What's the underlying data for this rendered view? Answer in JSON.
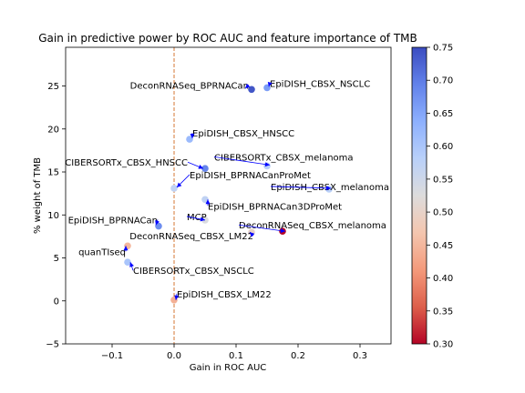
{
  "chart_data": {
    "type": "scatter",
    "title": "Gain in predictive power by ROC AUC and feature importance of TMB",
    "xlabel": "Gain in ROC AUC",
    "ylabel": "% weight of TMB",
    "xlim": [
      -0.175,
      0.35
    ],
    "ylim": [
      -5,
      29.5
    ],
    "xticks": [
      -0.1,
      0.0,
      0.1,
      0.2,
      0.3
    ],
    "xtick_labels": [
      "−0.1",
      "0.0",
      "0.1",
      "0.2",
      "0.3"
    ],
    "yticks": [
      -5,
      0,
      5,
      10,
      15,
      20,
      25
    ],
    "ytick_labels": [
      "−5",
      "0",
      "5",
      "10",
      "15",
      "20",
      "25"
    ],
    "grid": false,
    "reference_line": {
      "x": 0.0,
      "color": "#d2691e",
      "style": "dashed"
    },
    "colorbar": {
      "label": "",
      "range": [
        0.3,
        0.75
      ],
      "ticks": [
        0.3,
        0.35,
        0.4,
        0.45,
        0.5,
        0.55,
        0.6,
        0.65,
        0.7,
        0.75
      ],
      "tick_labels": [
        "0.30",
        "0.35",
        "0.40",
        "0.45",
        "0.50",
        "0.55",
        "0.60",
        "0.65",
        "0.70",
        "0.75"
      ],
      "colormap": "coolwarm_r"
    },
    "arrow_color": "#0000ff",
    "points": [
      {
        "label": "DeconRNASeq_BPRNACan",
        "x": 0.125,
        "y": 24.6,
        "c": 0.74
      },
      {
        "label": "EpiDISH_CBSX_NSCLC",
        "x": 0.15,
        "y": 24.8,
        "c": 0.66
      },
      {
        "label": "EpiDISH_CBSX_HNSCC",
        "x": 0.025,
        "y": 18.8,
        "c": 0.62
      },
      {
        "label": "CIBERSORTx_CBSX_HNSCC",
        "x": 0.05,
        "y": 15.4,
        "c": 0.69
      },
      {
        "label": "CIBERSORTx_CBSX_melanoma",
        "x": 0.15,
        "y": 15.7,
        "c": 0.58
      },
      {
        "label": "EpiDISH_BPRNACanProMet",
        "x": 0.0,
        "y": 13.1,
        "c": 0.57
      },
      {
        "label": "EpiDISH_CBSX_melanoma",
        "x": 0.25,
        "y": 13.0,
        "c": 0.58
      },
      {
        "label": "EpiDISH_BPRNACan3DProMet",
        "x": 0.05,
        "y": 11.8,
        "c": 0.57
      },
      {
        "label": "MCP",
        "x": 0.05,
        "y": 9.4,
        "c": 0.53
      },
      {
        "label": "EpiDISH_BPRNACan",
        "x": -0.025,
        "y": 8.7,
        "c": 0.68
      },
      {
        "label": "DeconRNASeq_CBSX_melanoma",
        "x": 0.175,
        "y": 8.1,
        "c": 0.3
      },
      {
        "label": "DeconRNASeq_CBSX_LM22",
        "x": 0.125,
        "y": 8.0,
        "c": 0.5
      },
      {
        "label": "quanTIseq",
        "x": -0.075,
        "y": 6.4,
        "c": 0.45
      },
      {
        "label": "CIBERSORTx_CBSX_NSCLC",
        "x": -0.075,
        "y": 4.5,
        "c": 0.6
      },
      {
        "label": "EpiDISH_CBSX_LM22",
        "x": 0.0,
        "y": 0.1,
        "c": 0.44
      }
    ]
  }
}
